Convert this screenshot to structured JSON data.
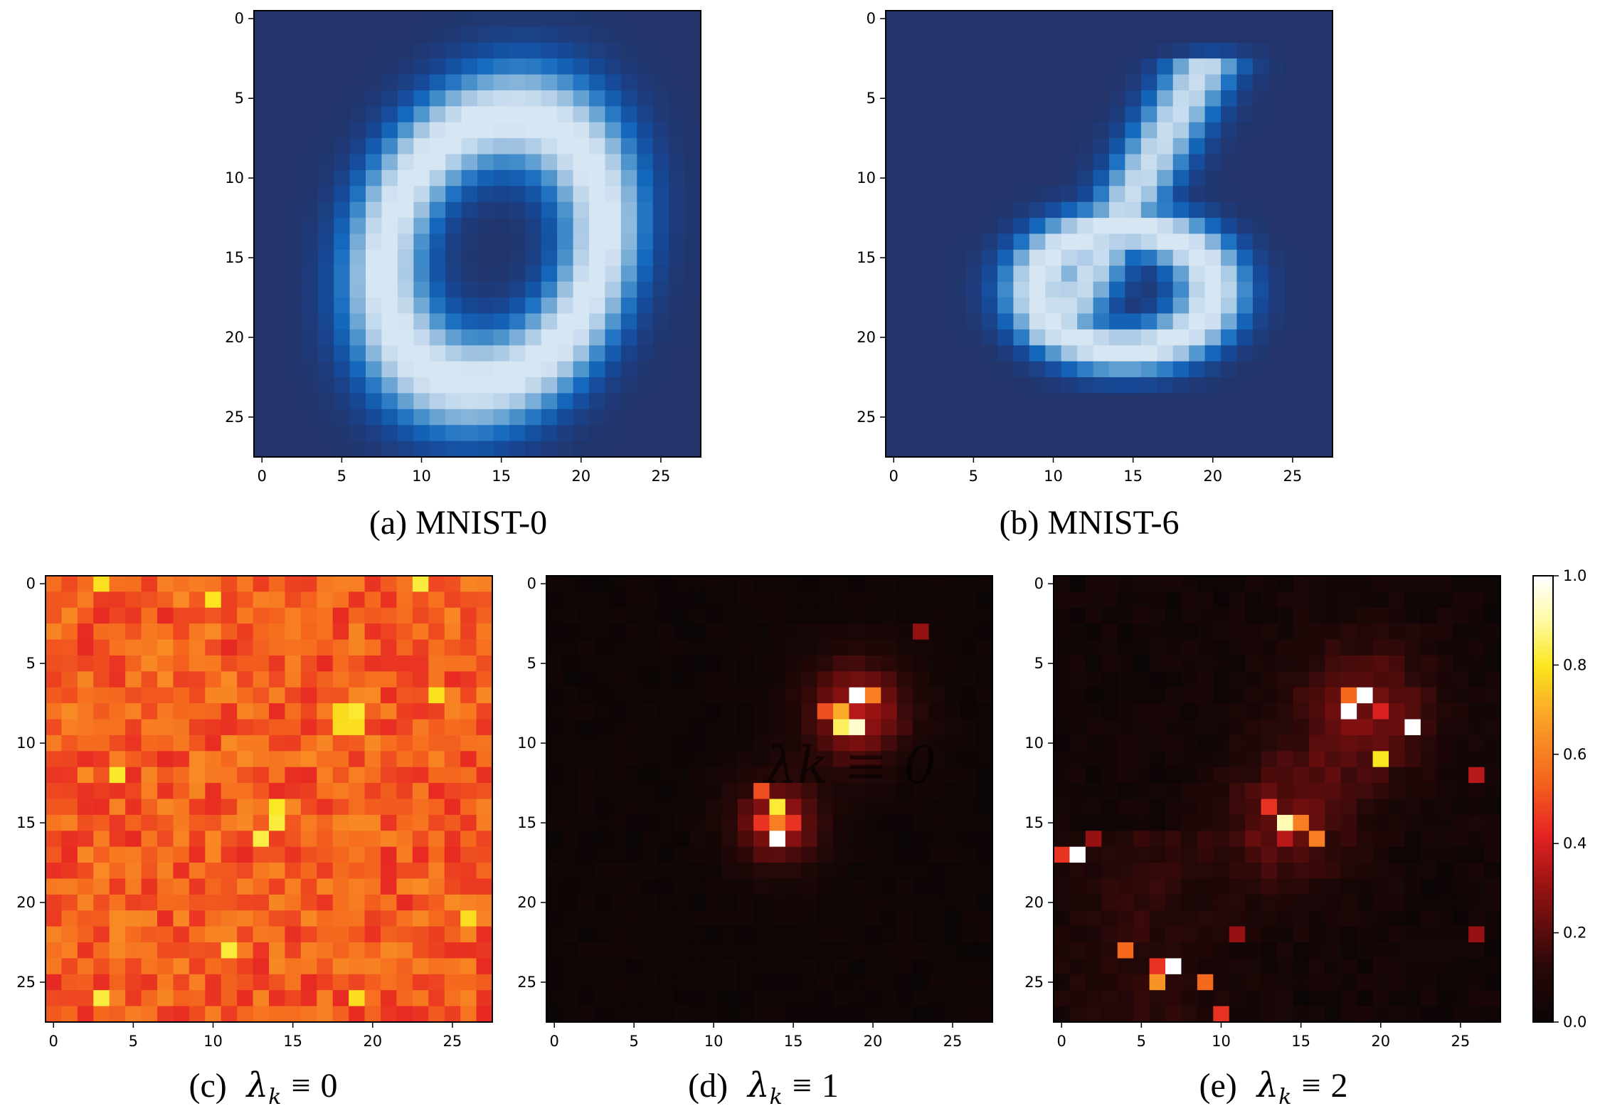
{
  "panels": [
    {
      "id": "a",
      "caption": "(a) MNIST-0",
      "colormap": "blues",
      "pattern": "digit0"
    },
    {
      "id": "b",
      "caption": "(b) MNIST-6",
      "colormap": "blues",
      "pattern": "digit6"
    },
    {
      "id": "c",
      "caption_prefix": "(c)",
      "lambda_value": "0",
      "colormap": "hot",
      "pattern": "uniform"
    },
    {
      "id": "d",
      "caption_prefix": "(d)",
      "lambda_value": "1",
      "colormap": "hot",
      "pattern": "twoBlobs"
    },
    {
      "id": "e",
      "caption_prefix": "(e)",
      "lambda_value": "2",
      "colormap": "hot",
      "pattern": "scattered"
    }
  ],
  "overlay_text": "λk ≡ 0",
  "colorbar": {
    "ticks": [
      "0.0",
      "0.2",
      "0.4",
      "0.6",
      "0.8",
      "1.0"
    ],
    "range": [
      0.0,
      1.0
    ],
    "colormap": "hot"
  },
  "chart_data": [
    {
      "type": "heatmap",
      "title": "(a) MNIST-0",
      "grid_size": [
        28,
        28
      ],
      "xticks": [
        0,
        5,
        10,
        15,
        20,
        25
      ],
      "yticks": [
        0,
        5,
        10,
        15,
        20,
        25
      ],
      "colormap": "Blues"
    },
    {
      "type": "heatmap",
      "title": "(b) MNIST-6",
      "grid_size": [
        28,
        28
      ],
      "xticks": [
        0,
        5,
        10,
        15,
        20,
        25
      ],
      "yticks": [
        0,
        5,
        10,
        15,
        20,
        25
      ],
      "colormap": "Blues"
    },
    {
      "type": "heatmap",
      "title": "(c) λk ≡ 0",
      "grid_size": [
        28,
        28
      ],
      "xticks": [
        0,
        5,
        10,
        15,
        20,
        25
      ],
      "yticks": [
        0,
        5,
        10,
        15,
        20,
        25
      ],
      "colormap": "hot",
      "value_range": [
        0.0,
        1.0
      ]
    },
    {
      "type": "heatmap",
      "title": "(d) λk ≡ 1",
      "grid_size": [
        28,
        28
      ],
      "xticks": [
        0,
        5,
        10,
        15,
        20,
        25
      ],
      "yticks": [
        0,
        5,
        10,
        15,
        20,
        25
      ],
      "colormap": "hot",
      "value_range": [
        0.0,
        1.0
      ]
    },
    {
      "type": "heatmap",
      "title": "(e) λk ≡ 2",
      "grid_size": [
        28,
        28
      ],
      "xticks": [
        0,
        5,
        10,
        15,
        20,
        25
      ],
      "yticks": [
        0,
        5,
        10,
        15,
        20,
        25
      ],
      "colormap": "hot",
      "value_range": [
        0.0,
        1.0
      ]
    }
  ]
}
